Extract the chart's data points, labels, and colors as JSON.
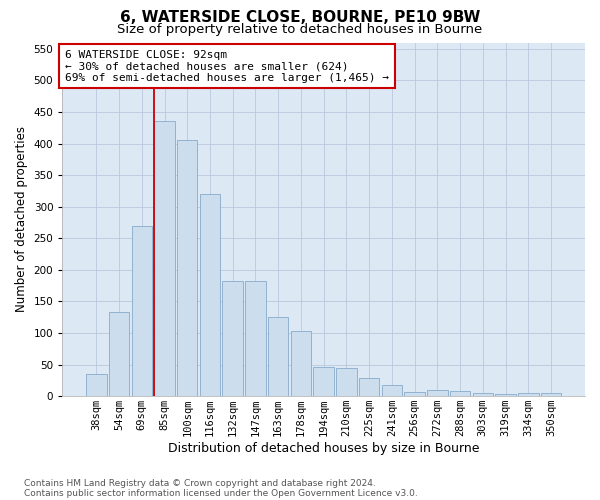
{
  "title1": "6, WATERSIDE CLOSE, BOURNE, PE10 9BW",
  "title2": "Size of property relative to detached houses in Bourne",
  "xlabel": "Distribution of detached houses by size in Bourne",
  "ylabel": "Number of detached properties",
  "bar_labels": [
    "38sqm",
    "54sqm",
    "69sqm",
    "85sqm",
    "100sqm",
    "116sqm",
    "132sqm",
    "147sqm",
    "163sqm",
    "178sqm",
    "194sqm",
    "210sqm",
    "225sqm",
    "241sqm",
    "256sqm",
    "272sqm",
    "288sqm",
    "303sqm",
    "319sqm",
    "334sqm",
    "350sqm"
  ],
  "bar_values": [
    35,
    133,
    270,
    435,
    405,
    320,
    183,
    182,
    125,
    103,
    46,
    44,
    28,
    17,
    7,
    9,
    8,
    5,
    4,
    5,
    5
  ],
  "bar_color": "#ccdded",
  "bar_edge_color": "#88aacc",
  "annotation_text": "6 WATERSIDE CLOSE: 92sqm\n← 30% of detached houses are smaller (624)\n69% of semi-detached houses are larger (1,465) →",
  "annotation_box_color": "#ffffff",
  "annotation_box_edge": "#cc0000",
  "vline_color": "#cc0000",
  "ylim": [
    0,
    560
  ],
  "yticks": [
    0,
    50,
    100,
    150,
    200,
    250,
    300,
    350,
    400,
    450,
    500,
    550
  ],
  "grid_color": "#b8c8dc",
  "background_color": "#dde8f5",
  "footer1": "Contains HM Land Registry data © Crown copyright and database right 2024.",
  "footer2": "Contains public sector information licensed under the Open Government Licence v3.0.",
  "title1_fontsize": 11,
  "title2_fontsize": 9.5,
  "xlabel_fontsize": 9,
  "ylabel_fontsize": 8.5,
  "tick_fontsize": 7.5,
  "annotation_fontsize": 8,
  "footer_fontsize": 6.5
}
